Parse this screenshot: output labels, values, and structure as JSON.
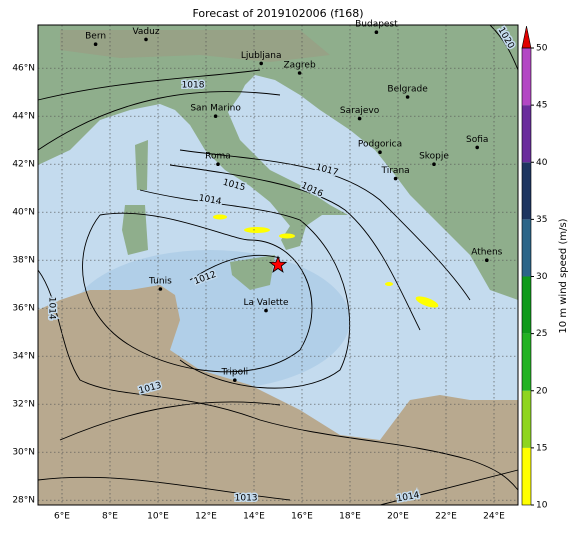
{
  "title": "Forecast of 2019102006 (f168)",
  "map": {
    "lonlim": [
      5,
      25
    ],
    "latlim": [
      27.8,
      47.8
    ],
    "lon_ticks": [
      {
        "value": 6,
        "label": "6°E"
      },
      {
        "value": 8,
        "label": "8°E"
      },
      {
        "value": 10,
        "label": "10°E"
      },
      {
        "value": 12,
        "label": "12°E"
      },
      {
        "value": 14,
        "label": "14°E"
      },
      {
        "value": 16,
        "label": "16°E"
      },
      {
        "value": 18,
        "label": "18°E"
      },
      {
        "value": 20,
        "label": "20°E"
      },
      {
        "value": 22,
        "label": "22°E"
      },
      {
        "value": 24,
        "label": "24°E"
      }
    ],
    "lat_ticks": [
      {
        "value": 28,
        "label": "28°N"
      },
      {
        "value": 30,
        "label": "30°N"
      },
      {
        "value": 32,
        "label": "32°N"
      },
      {
        "value": 34,
        "label": "34°N"
      },
      {
        "value": 36,
        "label": "36°N"
      },
      {
        "value": 38,
        "label": "38°N"
      },
      {
        "value": 40,
        "label": "40°N"
      },
      {
        "value": 42,
        "label": "42°N"
      },
      {
        "value": 44,
        "label": "44°N"
      },
      {
        "value": 46,
        "label": "46°N"
      }
    ],
    "cities": [
      {
        "name": "Bern",
        "lon": 7.4,
        "lat": 47.0
      },
      {
        "name": "Vaduz",
        "lon": 9.5,
        "lat": 47.2
      },
      {
        "name": "Budapest",
        "lon": 19.1,
        "lat": 47.5
      },
      {
        "name": "Ljubljana",
        "lon": 14.3,
        "lat": 46.2
      },
      {
        "name": "Zagreb",
        "lon": 15.9,
        "lat": 45.8
      },
      {
        "name": "Belgrade",
        "lon": 20.4,
        "lat": 44.8
      },
      {
        "name": "San Marino",
        "lon": 12.4,
        "lat": 44.0
      },
      {
        "name": "Sarajevo",
        "lon": 18.4,
        "lat": 43.9
      },
      {
        "name": "Sofia",
        "lon": 23.3,
        "lat": 42.7
      },
      {
        "name": "Podgorica",
        "lon": 19.25,
        "lat": 42.5
      },
      {
        "name": "Skopje",
        "lon": 21.5,
        "lat": 42.0
      },
      {
        "name": "Roma",
        "lon": 12.5,
        "lat": 42.0
      },
      {
        "name": "Tirana",
        "lon": 19.9,
        "lat": 41.4
      },
      {
        "name": "Athens",
        "lon": 23.7,
        "lat": 38.0
      },
      {
        "name": "Tunis",
        "lon": 10.1,
        "lat": 36.8
      },
      {
        "name": "La Valette",
        "lon": 14.5,
        "lat": 35.9
      },
      {
        "name": "Tripoli",
        "lon": 13.2,
        "lat": 33.0
      }
    ],
    "isobar_labels": [
      {
        "label": "1020",
        "lon": 24.5,
        "lat": 47.26
      },
      {
        "label": "1018",
        "lon": 11.46,
        "lat": 45.3
      },
      {
        "label": "1017",
        "lon": 17.04,
        "lat": 41.76
      },
      {
        "label": "1016",
        "lon": 16.42,
        "lat": 40.93
      },
      {
        "label": "1015",
        "lon": 13.17,
        "lat": 41.13
      },
      {
        "label": "1014",
        "lon": 12.17,
        "lat": 40.51
      },
      {
        "label": "1012",
        "lon": 11.96,
        "lat": 37.26
      },
      {
        "label": "1014",
        "lon": 5.58,
        "lat": 36.0
      },
      {
        "label": "1013",
        "lon": 9.67,
        "lat": 32.67
      },
      {
        "label": "1013",
        "lon": 13.67,
        "lat": 28.09
      },
      {
        "label": "1014",
        "lon": 20.42,
        "lat": 28.13
      }
    ],
    "marker": {
      "lon": 15.0,
      "lat": 37.8,
      "color": "#ff0000"
    }
  },
  "colorbar": {
    "label": "10 m wind speed (m/s)",
    "limits": [
      10,
      50
    ],
    "ticks": [
      10,
      15,
      20,
      25,
      30,
      35,
      40,
      45,
      50
    ],
    "colors": [
      "#ffff00",
      "#8fd51f",
      "#22b222",
      "#0f9a1a",
      "#2b6588",
      "#1e3560",
      "#6a2d9c",
      "#b347c4"
    ],
    "extend_color": "#e00000"
  }
}
